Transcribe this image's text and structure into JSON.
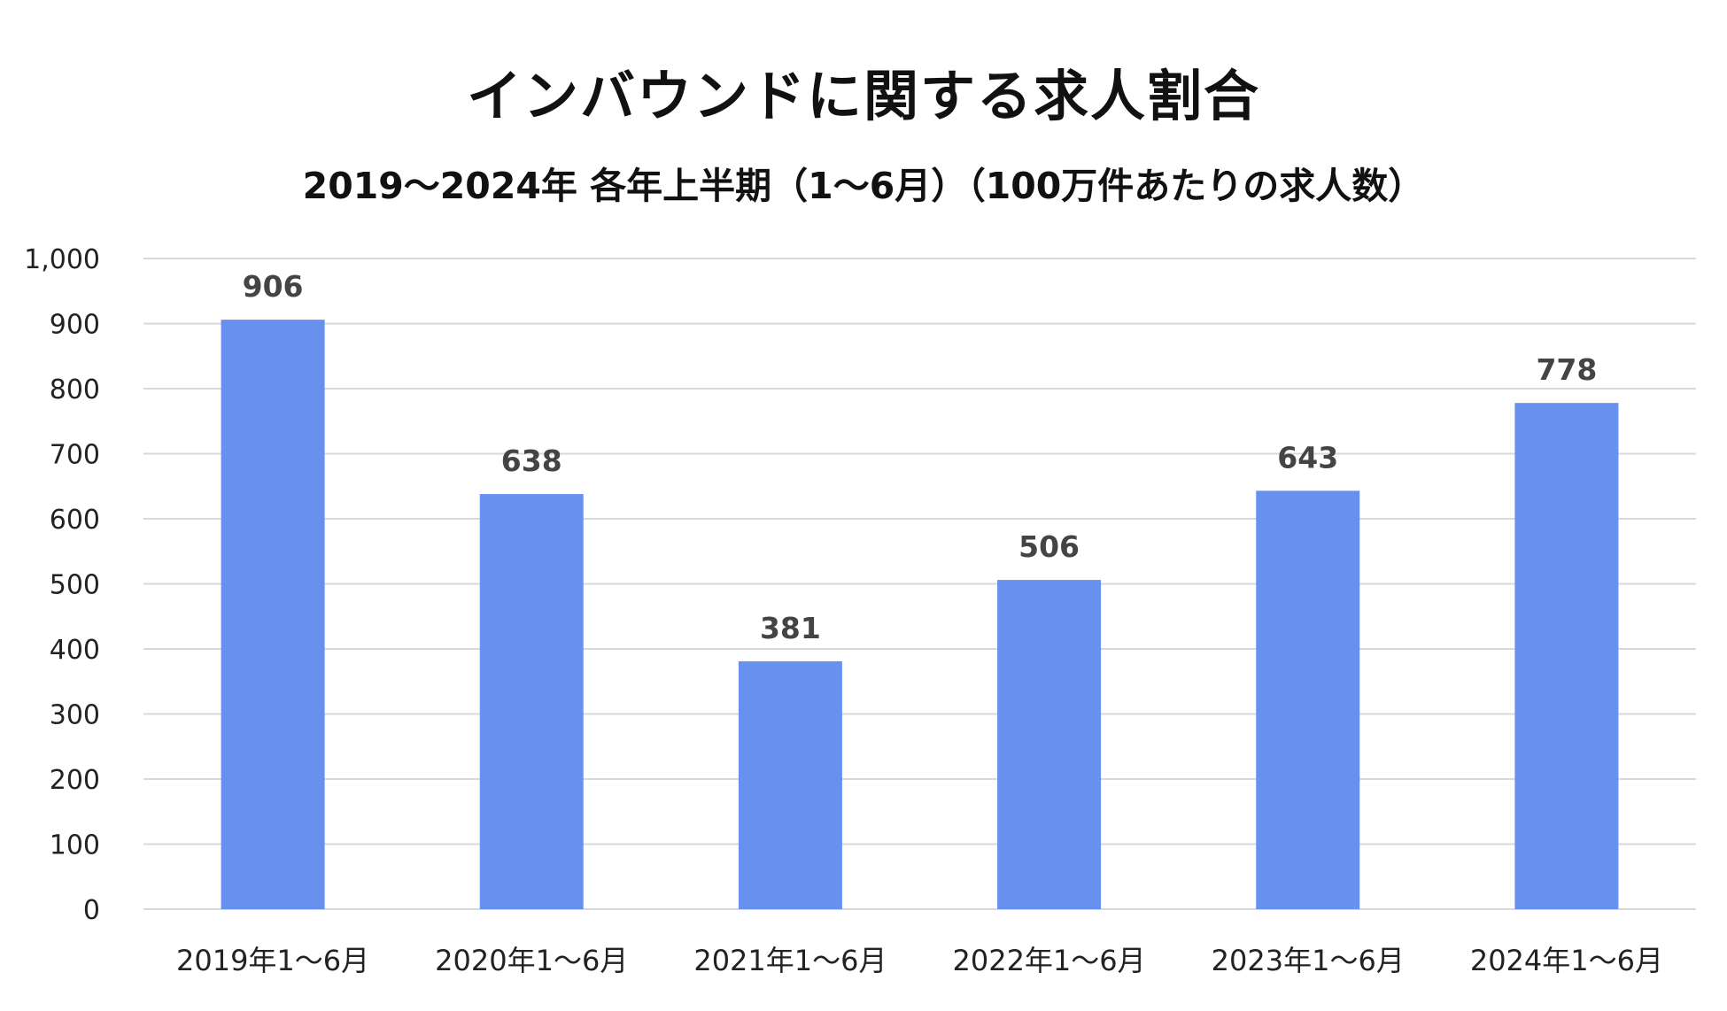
{
  "chart_data": {
    "type": "bar",
    "title": "インバウンドに関する求人割合",
    "subtitle": "2019〜2024年 各年上半期（1〜6月）（100万件あたりの求人数）",
    "xlabel": "",
    "ylabel": "",
    "categories": [
      "2019年1〜6月",
      "2020年1〜6月",
      "2021年1〜6月",
      "2022年1〜6月",
      "2023年1〜6月",
      "2024年1〜6月"
    ],
    "values": [
      906,
      638,
      381,
      506,
      643,
      778
    ],
    "ylim": [
      0,
      1000
    ],
    "yticks": [
      0,
      100,
      200,
      300,
      400,
      500,
      600,
      700,
      800,
      900,
      1000
    ],
    "ytick_labels": [
      "0",
      "100",
      "200",
      "300",
      "400",
      "500",
      "600",
      "700",
      "800",
      "900",
      "1,000"
    ],
    "grid": true,
    "legend": "none",
    "bar_color": "#6890EE",
    "grid_color": "#D9D9D9"
  }
}
